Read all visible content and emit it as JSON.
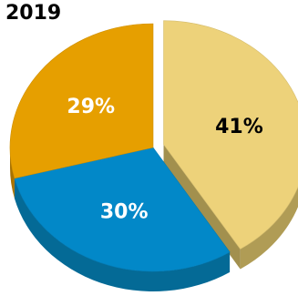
{
  "chart_data": {
    "type": "pie",
    "title": "2019",
    "slices": [
      {
        "label": "41%",
        "value": 41,
        "color": "#EDD27A",
        "side_color": "#B09C55",
        "label_color": "#000000",
        "exploded": true
      },
      {
        "label": "30%",
        "value": 30,
        "color": "#0288C8",
        "side_color": "#046A96",
        "label_color": "#ffffff",
        "exploded": false
      },
      {
        "label": "29%",
        "value": 29,
        "color": "#E69F00",
        "side_color": "#A87200",
        "label_color": "#ffffff",
        "exploded": false
      }
    ]
  }
}
